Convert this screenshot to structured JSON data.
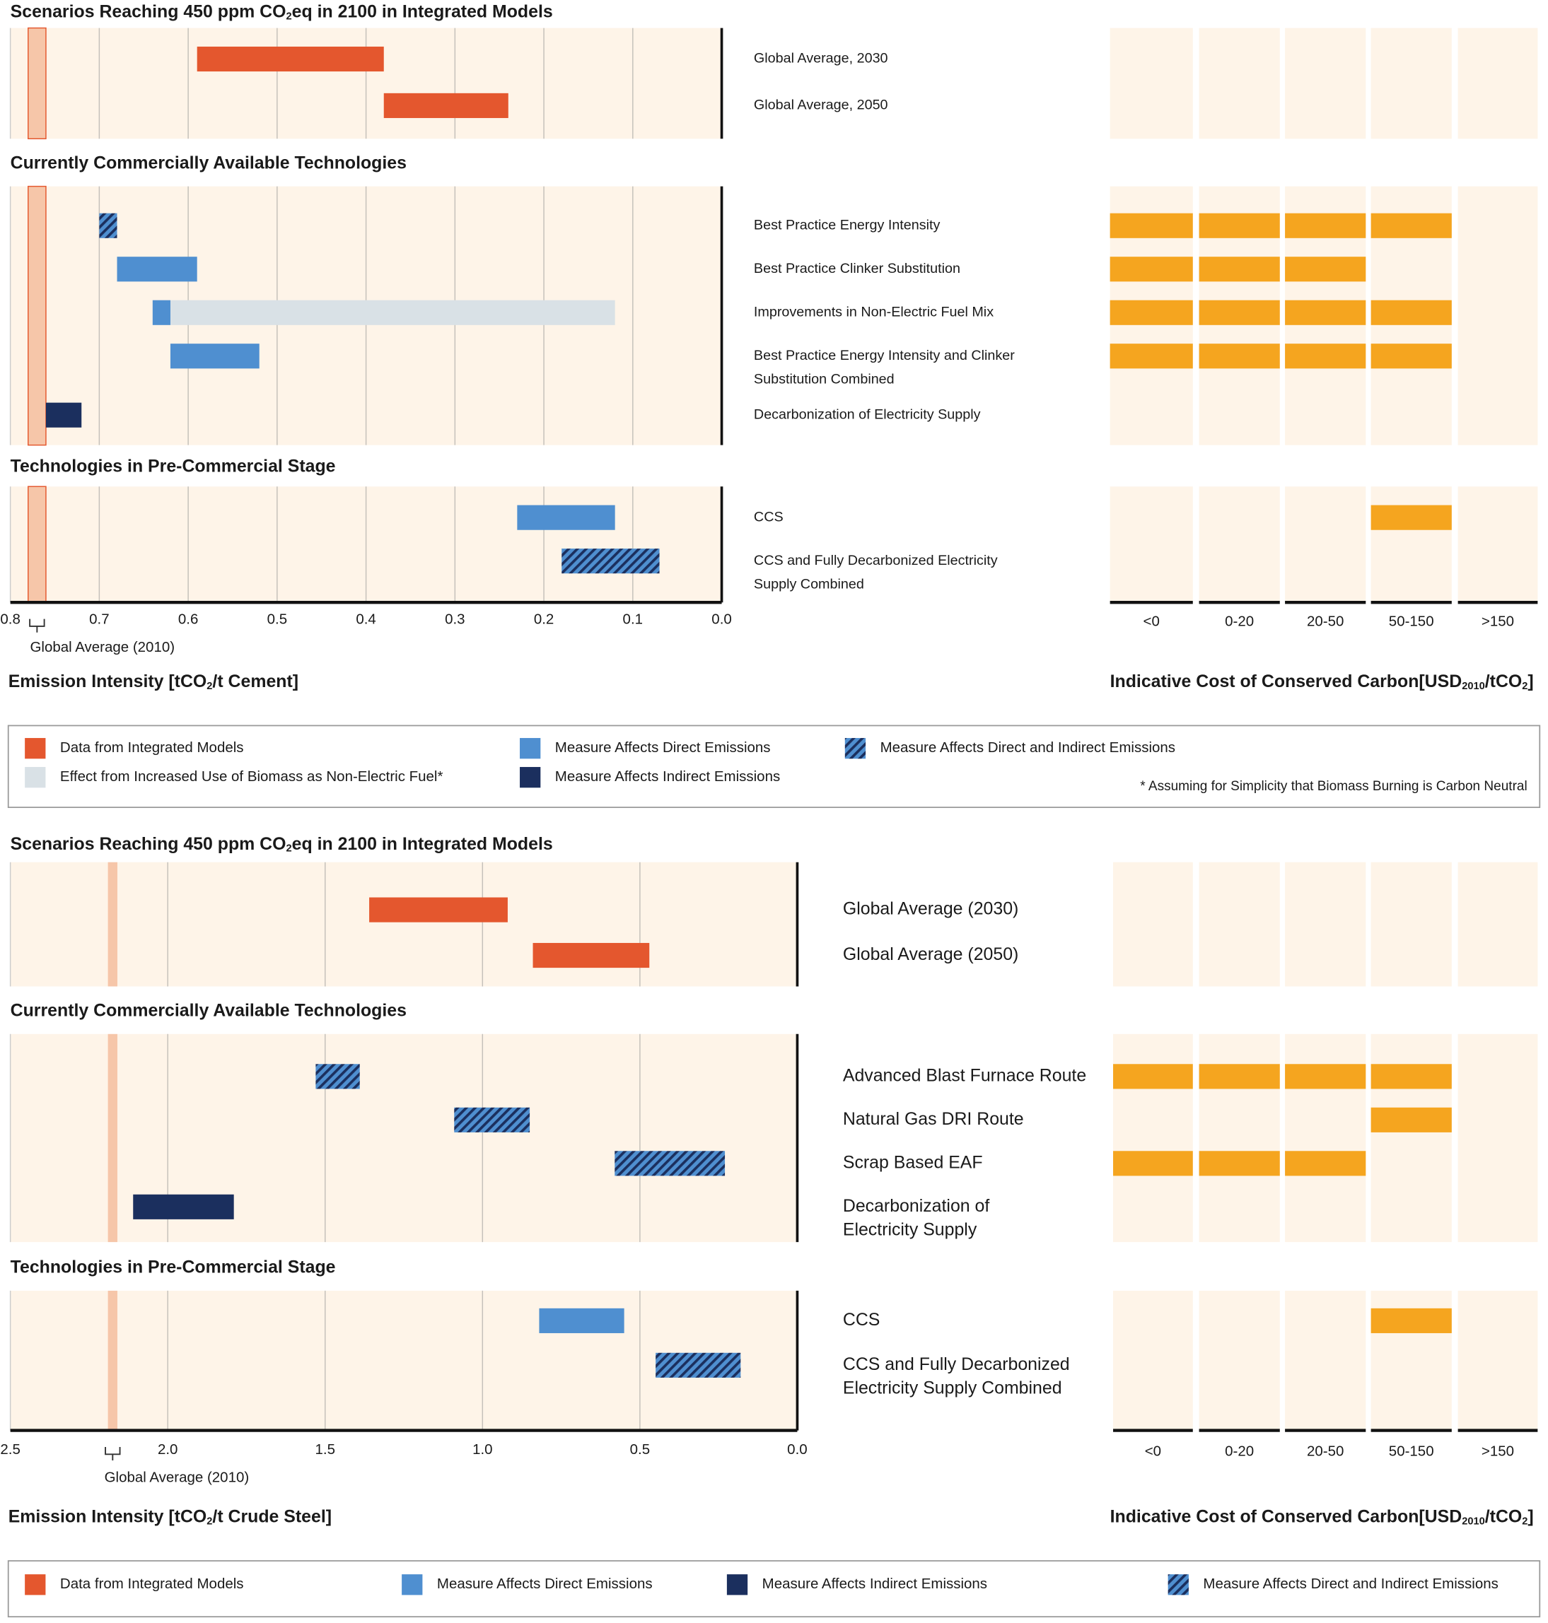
{
  "panels": [
    {
      "xlim": [
        0.8,
        0
      ],
      "xticks": [
        0.8,
        0.7,
        0.6,
        0.5,
        0.4,
        0.3,
        0.2,
        0.1,
        {
          "value": 0,
          "label": "0.0"
        }
      ],
      "global_average": {
        "label": "Global Average (2010)",
        "range": [
          0.78,
          0.76
        ]
      },
      "axis_label": [
        "Emission Intensity [tCO",
        "2",
        "/t Cement]"
      ],
      "cost_label": [
        "Indicative Cost of Conserved Carbon[USD",
        "2010",
        "/tCO",
        "2",
        "]"
      ],
      "cost_categories": [
        "<0",
        "0-20",
        "20-50",
        "50-150",
        ">150"
      ],
      "cost_color": "#f5a51f",
      "sections": [
        {
          "title": [
            "Scenarios Reaching 450 ppm CO",
            "2",
            "eq in 2100 in Integrated Models"
          ],
          "rows": [
            {
              "label": [
                "Global Average, 2030"
              ],
              "bars": [
                {
                  "color": "#e4572e",
                  "range": [
                    0.59,
                    0.38
                  ]
                }
              ],
              "costs": [
                false,
                false,
                false,
                false,
                false
              ]
            },
            {
              "label": [
                "Global Average, 2050"
              ],
              "bars": [
                {
                  "color": "#e4572e",
                  "range": [
                    0.38,
                    0.24
                  ]
                }
              ],
              "costs": [
                false,
                false,
                false,
                false,
                false
              ]
            }
          ]
        },
        {
          "title": [
            "Currently Commercially Available Technologies"
          ],
          "rows": [
            {
              "label": [
                "Best Practice Energy Intensity"
              ],
              "bars": [
                {
                  "color": "#4f8fd0",
                  "hatched": true,
                  "range": [
                    0.7,
                    0.68
                  ]
                }
              ],
              "costs": [
                true,
                true,
                true,
                true,
                false
              ]
            },
            {
              "label": [
                "Best Practice Clinker Substitution"
              ],
              "bars": [
                {
                  "color": "#4f8fd0",
                  "range": [
                    0.68,
                    0.59
                  ]
                }
              ],
              "costs": [
                true,
                true,
                true,
                false,
                false
              ]
            },
            {
              "label": [
                "Improvements in Non-Electric Fuel Mix"
              ],
              "bars": [
                {
                  "color": "#d9e1e6",
                  "range": [
                    0.62,
                    0.12
                  ]
                },
                {
                  "color": "#4f8fd0",
                  "range": [
                    0.64,
                    0.62
                  ]
                }
              ],
              "costs": [
                true,
                true,
                true,
                true,
                false
              ]
            },
            {
              "label": [
                "Best Practice Energy Intensity and Clinker",
                "Substitution Combined"
              ],
              "bars": [
                {
                  "color": "#4f8fd0",
                  "range": [
                    0.62,
                    0.52
                  ]
                }
              ],
              "costs": [
                true,
                true,
                true,
                true,
                false
              ]
            },
            {
              "label": [
                "Decarbonization of Electricity Supply"
              ],
              "bars": [
                {
                  "color": "#1b2f5e",
                  "range": [
                    0.76,
                    0.72
                  ]
                }
              ],
              "costs": [
                false,
                false,
                false,
                false,
                false
              ]
            }
          ]
        },
        {
          "title": [
            "Technologies in Pre-Commercial Stage"
          ],
          "rows": [
            {
              "label": [
                "CCS"
              ],
              "bars": [
                {
                  "color": "#4f8fd0",
                  "range": [
                    0.23,
                    0.12
                  ]
                }
              ],
              "costs": [
                false,
                false,
                false,
                true,
                false
              ]
            },
            {
              "label": [
                "CCS and Fully Decarbonized Electricity",
                "Supply Combined"
              ],
              "bars": [
                {
                  "color": "#4f8fd0",
                  "hatched": true,
                  "range": [
                    0.18,
                    0.07
                  ]
                }
              ],
              "costs": [
                false,
                false,
                false,
                false,
                false
              ]
            }
          ]
        }
      ],
      "legend": {
        "items": [
          {
            "color": "#e4572e",
            "label": "Data from Integrated Models"
          },
          {
            "color": "#d9e1e6",
            "label": "Effect from Increased Use of Biomass as Non-Electric Fuel*"
          },
          {
            "color": "#4f8fd0",
            "label": "Measure Affects Direct Emissions"
          },
          {
            "color": "#1b2f5e",
            "label": "Measure Affects Indirect Emissions"
          },
          {
            "color": "#4f8fd0",
            "hatched": true,
            "label": "Measure Affects Direct and Indirect Emissions"
          }
        ],
        "note": "* Assuming for Simplicity that Biomass Burning is Carbon Neutral"
      }
    },
    {
      "xlim": [
        2.5,
        0
      ],
      "xticks": [
        2.5,
        {
          "value": 2,
          "label": "2.0"
        },
        1.5,
        {
          "value": 1,
          "label": "1.0"
        },
        0.5,
        {
          "value": 0,
          "label": "0.0"
        }
      ],
      "global_average": {
        "label": "Global Average (2010)",
        "range": [
          2.19,
          2.16
        ]
      },
      "axis_label": [
        "Emission Intensity [tCO",
        "2",
        "/t Crude Steel]"
      ],
      "cost_label": [
        "Indicative Cost of Conserved Carbon[USD",
        "2010",
        "/tCO",
        "2",
        "]"
      ],
      "cost_categories": [
        "<0",
        "0-20",
        "20-50",
        "50-150",
        ">150"
      ],
      "cost_color": "#f5a51f",
      "sections": [
        {
          "title": [
            "Scenarios Reaching 450 ppm CO",
            "2",
            "eq in 2100 in Integrated Models"
          ],
          "rows": [
            {
              "label": [
                "Global Average (2030)"
              ],
              "bars": [
                {
                  "color": "#e4572e",
                  "range": [
                    1.36,
                    0.92
                  ]
                }
              ],
              "costs": [
                false,
                false,
                false,
                false,
                false
              ]
            },
            {
              "label": [
                "Global Average (2050)"
              ],
              "bars": [
                {
                  "color": "#e4572e",
                  "range": [
                    0.84,
                    0.47
                  ]
                }
              ],
              "costs": [
                false,
                false,
                false,
                false,
                false
              ]
            }
          ]
        },
        {
          "title": [
            "Currently Commercially Available Technologies"
          ],
          "rows": [
            {
              "label": [
                "Advanced Blast Furnace Route"
              ],
              "bars": [
                {
                  "color": "#4f8fd0",
                  "hatched": true,
                  "range": [
                    1.53,
                    1.39
                  ]
                }
              ],
              "costs": [
                true,
                true,
                true,
                true,
                false
              ]
            },
            {
              "label": [
                "Natural Gas DRI Route"
              ],
              "bars": [
                {
                  "color": "#4f8fd0",
                  "hatched": true,
                  "range": [
                    1.09,
                    0.85
                  ]
                }
              ],
              "costs": [
                false,
                false,
                false,
                true,
                false
              ]
            },
            {
              "label": [
                "Scrap Based EAF"
              ],
              "bars": [
                {
                  "color": "#4f8fd0",
                  "hatched": true,
                  "range": [
                    0.58,
                    0.23
                  ]
                }
              ],
              "costs": [
                true,
                true,
                true,
                false,
                false
              ]
            },
            {
              "label": [
                "Decarbonization of",
                "Electricity Supply"
              ],
              "bars": [
                {
                  "color": "#1b2f5e",
                  "range": [
                    2.11,
                    1.79
                  ]
                }
              ],
              "costs": [
                false,
                false,
                false,
                false,
                false
              ]
            }
          ]
        },
        {
          "title": [
            "Technologies in Pre-Commercial Stage"
          ],
          "rows": [
            {
              "label": [
                "CCS"
              ],
              "bars": [
                {
                  "color": "#4f8fd0",
                  "range": [
                    0.82,
                    0.55
                  ]
                }
              ],
              "costs": [
                false,
                false,
                false,
                true,
                false
              ]
            },
            {
              "label": [
                "CCS and Fully Decarbonized",
                "Electricity Supply Combined"
              ],
              "bars": [
                {
                  "color": "#4f8fd0",
                  "hatched": true,
                  "range": [
                    0.45,
                    0.18
                  ]
                }
              ],
              "costs": [
                false,
                false,
                false,
                false,
                false
              ]
            }
          ]
        }
      ],
      "legend": {
        "items": [
          {
            "color": "#e4572e",
            "label": "Data from Integrated Models"
          },
          {
            "color": "#4f8fd0",
            "label": "Measure Affects Direct Emissions"
          },
          {
            "color": "#1b2f5e",
            "label": "Measure Affects Indirect Emissions"
          },
          {
            "color": "#4f8fd0",
            "hatched": true,
            "label": "Measure Affects Direct and Indirect Emissions"
          }
        ]
      }
    }
  ]
}
